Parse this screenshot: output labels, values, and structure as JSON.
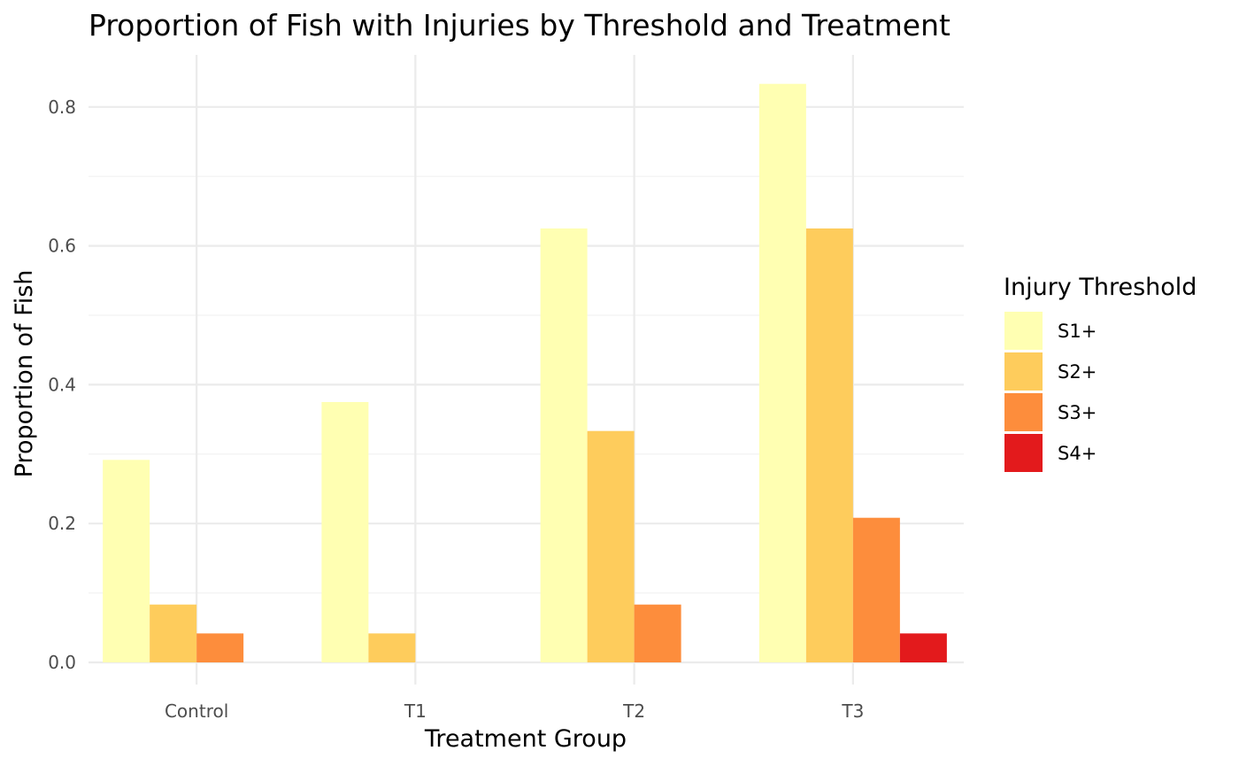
{
  "chart_data": {
    "type": "bar",
    "title": "Proportion of Fish with Injuries by Threshold and Treatment",
    "xlabel": "Treatment Group",
    "ylabel": "Proportion of Fish",
    "categories": [
      "Control",
      "T1",
      "T2",
      "T3"
    ],
    "ylim": [
      0,
      0.87
    ],
    "yticks": [
      0.0,
      0.2,
      0.4,
      0.6,
      0.8
    ],
    "ytick_labels": [
      "0.0",
      "0.2",
      "0.4",
      "0.6",
      "0.8"
    ],
    "grid": true,
    "legend_title": "Injury Threshold",
    "legend_position": "right",
    "series": [
      {
        "name": "S1+",
        "color": "#FFFFB2",
        "values": [
          0.2917,
          0.375,
          0.625,
          0.8333
        ]
      },
      {
        "name": "S2+",
        "color": "#FECC5C",
        "values": [
          0.0833,
          0.0417,
          0.3333,
          0.625
        ]
      },
      {
        "name": "S3+",
        "color": "#FD8D3C",
        "values": [
          0.0417,
          0.0,
          0.0833,
          0.2083
        ]
      },
      {
        "name": "S4+",
        "color": "#E31A1C",
        "values": [
          0.0,
          0.0,
          0.0,
          0.0417
        ]
      }
    ]
  }
}
